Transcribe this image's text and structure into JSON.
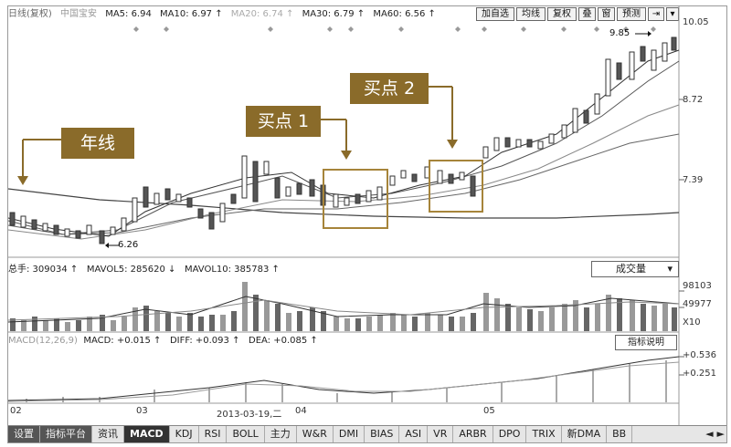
{
  "infobar": {
    "title": "日线(复权)",
    "stock": "中国宝安",
    "ma5": "MA5: 6.94",
    "ma10": "MA10: 6.97 ↑",
    "ma20": "MA20: 6.74 ↑",
    "ma30": "MA30: 6.79 ↑",
    "ma60": "MA60: 6.56 ↑"
  },
  "toolbar": {
    "add_watch": "加自选",
    "ma_line": "均线",
    "restore_right": "复权",
    "overlay": "叠",
    "window": "窗",
    "forecast": "预测",
    "pin": "⇥",
    "more": "▾"
  },
  "price_axis": {
    "top": "10.05",
    "mid": "8.72",
    "low": "7.39"
  },
  "annotations": {
    "high": "9.85",
    "low": "6.26",
    "year_line": "年线",
    "buy1": "买点 1",
    "buy2": "买点 2"
  },
  "volume_bar": {
    "total": "总手: 309034 ↑",
    "mavol5": "MAVOL5: 285620 ↓",
    "mavol10": "MAVOL10: 385783 ↑",
    "dropdown": "成交量",
    "axis_top": "98103",
    "axis_mid": "49977",
    "axis_unit": "X10"
  },
  "macd_bar": {
    "title": "MACD(12,26,9)",
    "macd": "MACD: +0.015 ↑",
    "diff": "DIFF: +0.093 ↑",
    "dea": "DEA: +0.085 ↑",
    "explain": "指标说明",
    "axis_top": "+0.536",
    "axis_mid": "+0.251"
  },
  "date_axis": {
    "d1": "02",
    "d2": "03",
    "d3": "2013-03-19,二",
    "d4": "04",
    "d5": "05"
  },
  "tabs": [
    "设置",
    "指标平台",
    "资讯",
    "MACD",
    "KDJ",
    "RSI",
    "BOLL",
    "主力",
    "W&R",
    "DMI",
    "BIAS",
    "ASI",
    "VR",
    "ARBR",
    "DPO",
    "TRIX",
    "新DMA",
    "BB"
  ],
  "tab_active": "MACD",
  "scroll": {
    "left": "◄",
    "right": "►"
  }
}
